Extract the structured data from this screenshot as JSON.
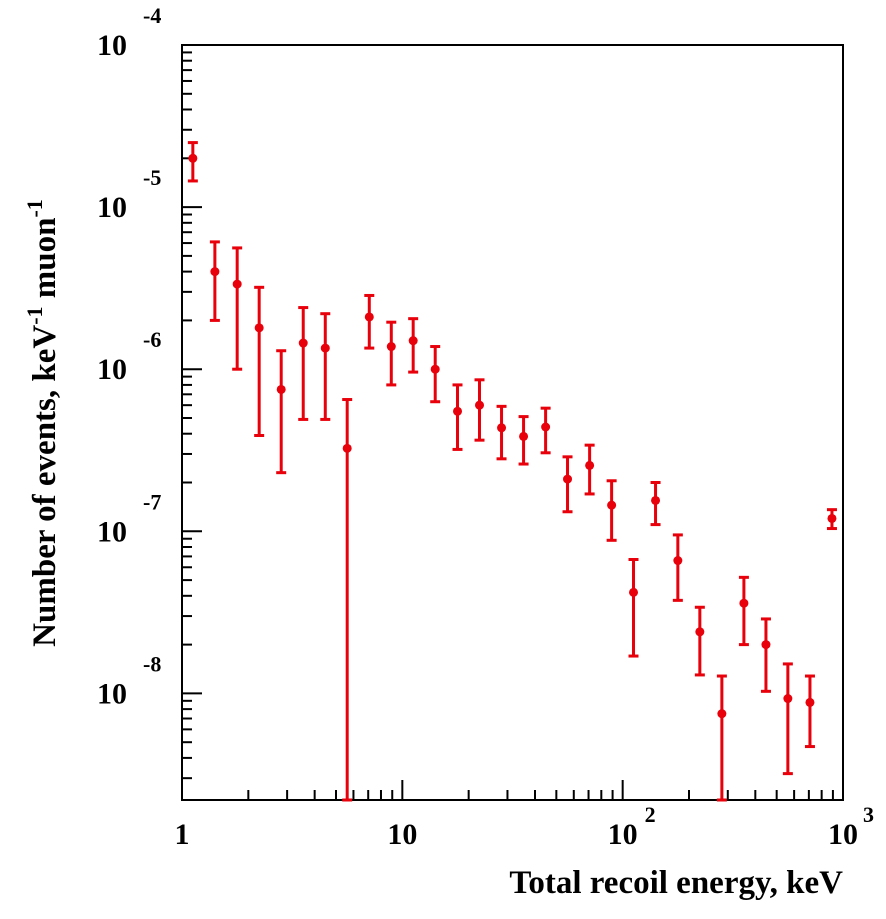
{
  "chart_data": {
    "type": "scatter",
    "xlabel": "Total recoil energy, keV",
    "ylabel": "Number of events, keV",
    "ylabel_sup1": "-1",
    "ylabel_mid": " muon",
    "ylabel_sup2": "-1",
    "x_scale": "log",
    "y_scale": "log",
    "xlim": [
      1,
      1000
    ],
    "ylim": [
      2.2e-09,
      0.0001
    ],
    "x_ticks": [
      {
        "value": 1,
        "base": "1",
        "exp": ""
      },
      {
        "value": 10,
        "base": "10",
        "exp": ""
      },
      {
        "value": 100,
        "base": "10",
        "exp": "2"
      },
      {
        "value": 1000,
        "base": "10",
        "exp": "3"
      }
    ],
    "y_ticks": [
      {
        "value": 0.0001,
        "base": "10",
        "exp": "-4"
      },
      {
        "value": 1e-05,
        "base": "10",
        "exp": "-5"
      },
      {
        "value": 1e-06,
        "base": "10",
        "exp": "-6"
      },
      {
        "value": 1e-07,
        "base": "10",
        "exp": "-7"
      },
      {
        "value": 1e-08,
        "base": "10",
        "exp": "-8"
      }
    ],
    "marker_color": "#e8000b",
    "grid": false,
    "points": [
      {
        "x": 1.12,
        "y": 2e-05,
        "ylo": 1.45e-05,
        "yhi": 2.5e-05
      },
      {
        "x": 1.41,
        "y": 4e-06,
        "ylo": 2e-06,
        "yhi": 6.1e-06
      },
      {
        "x": 1.78,
        "y": 3.35e-06,
        "ylo": 1e-06,
        "yhi": 5.6e-06
      },
      {
        "x": 2.24,
        "y": 1.8e-06,
        "ylo": 3.9e-07,
        "yhi": 3.2e-06
      },
      {
        "x": 2.82,
        "y": 7.5e-07,
        "ylo": 2.3e-07,
        "yhi": 1.3e-06
      },
      {
        "x": 3.55,
        "y": 1.45e-06,
        "ylo": 4.9e-07,
        "yhi": 2.4e-06
      },
      {
        "x": 4.47,
        "y": 1.35e-06,
        "ylo": 4.9e-07,
        "yhi": 2.2e-06
      },
      {
        "x": 5.62,
        "y": 3.25e-07,
        "ylo": 2.2e-09,
        "yhi": 6.5e-07
      },
      {
        "x": 7.08,
        "y": 2.1e-06,
        "ylo": 1.35e-06,
        "yhi": 2.85e-06
      },
      {
        "x": 8.91,
        "y": 1.38e-06,
        "ylo": 8e-07,
        "yhi": 1.95e-06
      },
      {
        "x": 11.2,
        "y": 1.5e-06,
        "ylo": 9.6e-07,
        "yhi": 2.05e-06
      },
      {
        "x": 14.1,
        "y": 1e-06,
        "ylo": 6.3e-07,
        "yhi": 1.38e-06
      },
      {
        "x": 17.8,
        "y": 5.5e-07,
        "ylo": 3.2e-07,
        "yhi": 8e-07
      },
      {
        "x": 22.4,
        "y": 6e-07,
        "ylo": 3.65e-07,
        "yhi": 8.6e-07
      },
      {
        "x": 28.2,
        "y": 4.35e-07,
        "ylo": 2.8e-07,
        "yhi": 5.9e-07
      },
      {
        "x": 35.5,
        "y": 3.85e-07,
        "ylo": 2.6e-07,
        "yhi": 5.1e-07
      },
      {
        "x": 44.7,
        "y": 4.4e-07,
        "ylo": 3.05e-07,
        "yhi": 5.75e-07
      },
      {
        "x": 56.2,
        "y": 2.1e-07,
        "ylo": 1.32e-07,
        "yhi": 2.88e-07
      },
      {
        "x": 70.8,
        "y": 2.55e-07,
        "ylo": 1.7e-07,
        "yhi": 3.4e-07
      },
      {
        "x": 89.1,
        "y": 1.45e-07,
        "ylo": 8.8e-08,
        "yhi": 2.05e-07
      },
      {
        "x": 112,
        "y": 4.2e-08,
        "ylo": 1.7e-08,
        "yhi": 6.7e-08
      },
      {
        "x": 141,
        "y": 1.55e-07,
        "ylo": 1.1e-07,
        "yhi": 2e-07
      },
      {
        "x": 178,
        "y": 6.6e-08,
        "ylo": 3.75e-08,
        "yhi": 9.5e-08
      },
      {
        "x": 224,
        "y": 2.4e-08,
        "ylo": 1.3e-08,
        "yhi": 3.4e-08
      },
      {
        "x": 282,
        "y": 7.5e-09,
        "ylo": 2.2e-09,
        "yhi": 1.28e-08
      },
      {
        "x": 355,
        "y": 3.6e-08,
        "ylo": 2e-08,
        "yhi": 5.2e-08
      },
      {
        "x": 447,
        "y": 2e-08,
        "ylo": 1.03e-08,
        "yhi": 2.88e-08
      },
      {
        "x": 562,
        "y": 9.3e-09,
        "ylo": 3.2e-09,
        "yhi": 1.52e-08
      },
      {
        "x": 708,
        "y": 8.8e-09,
        "ylo": 4.7e-09,
        "yhi": 1.28e-08
      },
      {
        "x": 891,
        "y": 1.2e-07,
        "ylo": 1.04e-07,
        "yhi": 1.36e-07
      }
    ]
  }
}
